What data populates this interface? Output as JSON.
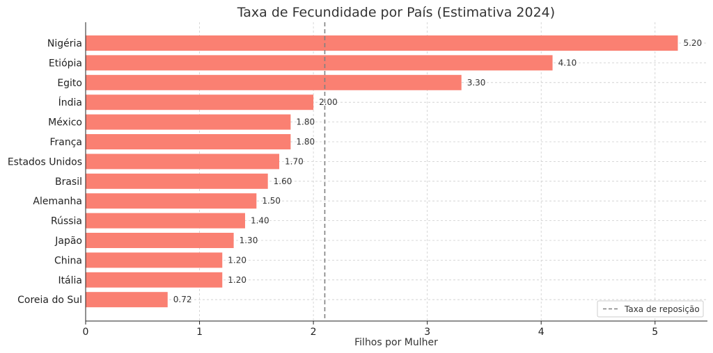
{
  "chart_data": {
    "type": "bar",
    "orientation": "horizontal",
    "title": "Taxa de Fecundidade por País (Estimativa 2024)",
    "xlabel": "Filhos por Mulher",
    "ylabel": "",
    "categories": [
      "Nigéria",
      "Etiópia",
      "Egito",
      "Índia",
      "México",
      "França",
      "Estados Unidos",
      "Brasil",
      "Alemanha",
      "Rússia",
      "Japão",
      "China",
      "Itália",
      "Coreia do Sul"
    ],
    "values": [
      5.2,
      4.1,
      3.3,
      2.0,
      1.8,
      1.8,
      1.7,
      1.6,
      1.5,
      1.4,
      1.3,
      1.2,
      1.2,
      0.72
    ],
    "data_labels": [
      "5.20",
      "4.10",
      "3.30",
      "2.00",
      "1.80",
      "1.80",
      "1.70",
      "1.60",
      "1.50",
      "1.40",
      "1.30",
      "1.20",
      "1.20",
      "0.72"
    ],
    "xlim": [
      0,
      5.46
    ],
    "xticks": [
      0,
      1,
      2,
      3,
      4,
      5
    ],
    "xtick_labels": [
      "0",
      "1",
      "2",
      "3",
      "4",
      "5"
    ],
    "reference_line": {
      "value": 2.1,
      "label": "Taxa de reposição",
      "style": "dashed",
      "color": "#808080"
    },
    "grid": true,
    "legend_position": "bottom-right",
    "bar_color": "#fa8072"
  }
}
